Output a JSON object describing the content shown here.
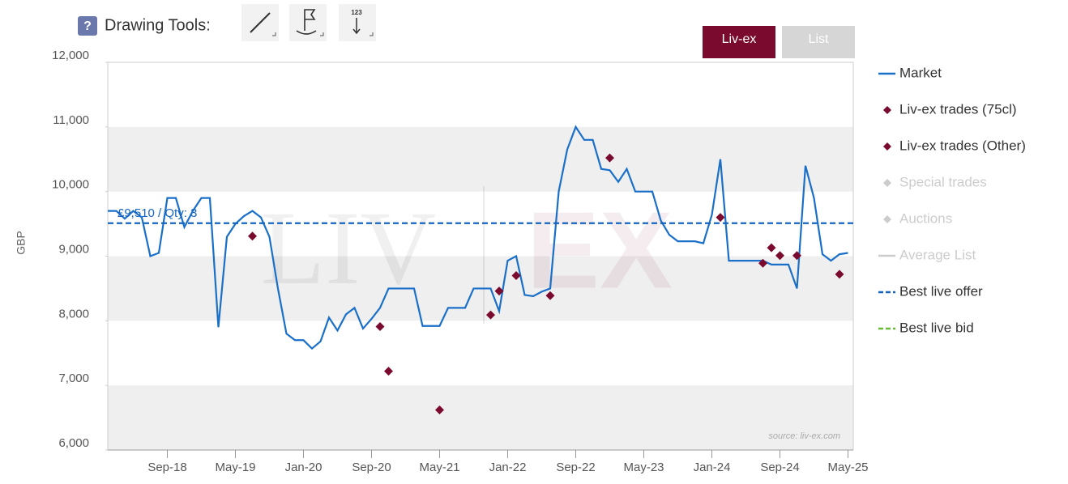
{
  "toolbar": {
    "help": "?",
    "label": "Drawing Tools:",
    "counter_icon": "123"
  },
  "tabs": [
    "Liv-ex",
    "List"
  ],
  "chart_data": {
    "type": "line",
    "y_label": "GBP",
    "source": "source: liv-ex.com",
    "watermark": [
      "LIV",
      "EX"
    ],
    "xlim": [
      "2018-02",
      "2025-06"
    ],
    "xticks": [
      {
        "value": "2018-09",
        "label": "Sep-18"
      },
      {
        "value": "2019-05",
        "label": "May-19"
      },
      {
        "value": "2020-01",
        "label": "Jan-20"
      },
      {
        "value": "2020-09",
        "label": "Sep-20"
      },
      {
        "value": "2021-05",
        "label": "May-21"
      },
      {
        "value": "2022-01",
        "label": "Jan-22"
      },
      {
        "value": "2022-09",
        "label": "Sep-22"
      },
      {
        "value": "2023-05",
        "label": "May-23"
      },
      {
        "value": "2024-01",
        "label": "Jan-24"
      },
      {
        "value": "2024-09",
        "label": "Sep-24"
      },
      {
        "value": "2025-05",
        "label": "May-25"
      }
    ],
    "ylim": [
      6000,
      12000
    ],
    "yticks": [
      {
        "value": 6000,
        "label": "6,000"
      },
      {
        "value": 7000,
        "label": "7,000"
      },
      {
        "value": 8000,
        "label": "8,000"
      },
      {
        "value": 9000,
        "label": "9,000"
      },
      {
        "value": 10000,
        "label": "10,000"
      },
      {
        "value": 11000,
        "label": "11,000"
      },
      {
        "value": 12000,
        "label": "12,000"
      }
    ],
    "bands": true,
    "series": [
      {
        "name": "Market",
        "kind": "line",
        "color": "#1a6fc9",
        "visible": true,
        "x": [
          "2018-02",
          "2018-03",
          "2018-04",
          "2018-05",
          "2018-06",
          "2018-07",
          "2018-08",
          "2018-09",
          "2018-10",
          "2018-11",
          "2018-12",
          "2019-01",
          "2019-02",
          "2019-03",
          "2019-04",
          "2019-05",
          "2019-06",
          "2019-07",
          "2019-08",
          "2019-09",
          "2019-10",
          "2019-11",
          "2019-12",
          "2020-01",
          "2020-02",
          "2020-03",
          "2020-04",
          "2020-05",
          "2020-06",
          "2020-07",
          "2020-08",
          "2020-09",
          "2020-10",
          "2020-11",
          "2020-12",
          "2021-01",
          "2021-02",
          "2021-03",
          "2021-04",
          "2021-05",
          "2021-06",
          "2021-07",
          "2021-08",
          "2021-09",
          "2021-10",
          "2021-11",
          "2021-12",
          "2022-01",
          "2022-02",
          "2022-03",
          "2022-04",
          "2022-05",
          "2022-06",
          "2022-07",
          "2022-08",
          "2022-09",
          "2022-10",
          "2022-11",
          "2022-12",
          "2023-01",
          "2023-02",
          "2023-03",
          "2023-04",
          "2023-05",
          "2023-06",
          "2023-07",
          "2023-08",
          "2023-09",
          "2023-10",
          "2023-11",
          "2023-12",
          "2024-01",
          "2024-02",
          "2024-03",
          "2024-04",
          "2024-05",
          "2024-06",
          "2024-07",
          "2024-08",
          "2024-09",
          "2024-10",
          "2024-11",
          "2024-12",
          "2025-01",
          "2025-02",
          "2025-03",
          "2025-04",
          "2025-05"
        ],
        "values": [
          9700,
          9700,
          9580,
          9700,
          9600,
          9000,
          9050,
          9900,
          9900,
          9450,
          9700,
          9900,
          9900,
          7900,
          9300,
          9500,
          9620,
          9700,
          9600,
          9300,
          8500,
          7800,
          7700,
          7700,
          7570,
          7680,
          8050,
          7850,
          8100,
          8200,
          7880,
          8030,
          8200,
          8500,
          8500,
          8500,
          8500,
          7920,
          7920,
          7920,
          8200,
          8200,
          8200,
          8500,
          8500,
          8500,
          8150,
          8930,
          9000,
          8400,
          8380,
          8450,
          8500,
          10000,
          10650,
          11000,
          10800,
          10800,
          10350,
          10330,
          10150,
          10350,
          10000,
          10000,
          10000,
          9550,
          9330,
          9230,
          9230,
          9230,
          9200,
          9640,
          10500,
          8930,
          8930,
          8930,
          8930,
          8930,
          8870,
          8870,
          8870,
          8500,
          10400,
          9900,
          9030,
          8930,
          9030,
          9050
        ]
      },
      {
        "name": "Liv-ex trades (75cl)",
        "kind": "diamond",
        "color": "#7a0a2e",
        "visible": true,
        "x": [
          "2019-07",
          "2020-10",
          "2020-11",
          "2021-05",
          "2021-11",
          "2021-12",
          "2022-02",
          "2022-06",
          "2023-01",
          "2024-02",
          "2024-07",
          "2024-08",
          "2024-09",
          "2024-11",
          "2025-04"
        ],
        "values": [
          9310,
          7910,
          7220,
          6620,
          8090,
          8460,
          8700,
          8390,
          10520,
          9600,
          8890,
          9130,
          9010,
          9010,
          8720
        ]
      },
      {
        "name": "Liv-ex trades (Other)",
        "kind": "diamond",
        "color": "#7a0a2e",
        "visible": true,
        "x": [],
        "values": []
      },
      {
        "name": "Special trades",
        "kind": "diamond",
        "color": "#cccccc",
        "visible": false,
        "x": [],
        "values": []
      },
      {
        "name": "Auctions",
        "kind": "diamond",
        "color": "#cccccc",
        "visible": false,
        "x": [],
        "values": []
      },
      {
        "name": "Average List",
        "kind": "line",
        "color": "#cccccc",
        "visible": false,
        "x": [],
        "values": []
      },
      {
        "name": "Best live offer",
        "kind": "dashed",
        "color": "#1565c0",
        "visible": true,
        "value": 9510,
        "value_label": "£9,510 / Qty: 3"
      },
      {
        "name": "Best live bid",
        "kind": "dashed",
        "color": "#66bb33",
        "visible": true
      }
    ]
  }
}
